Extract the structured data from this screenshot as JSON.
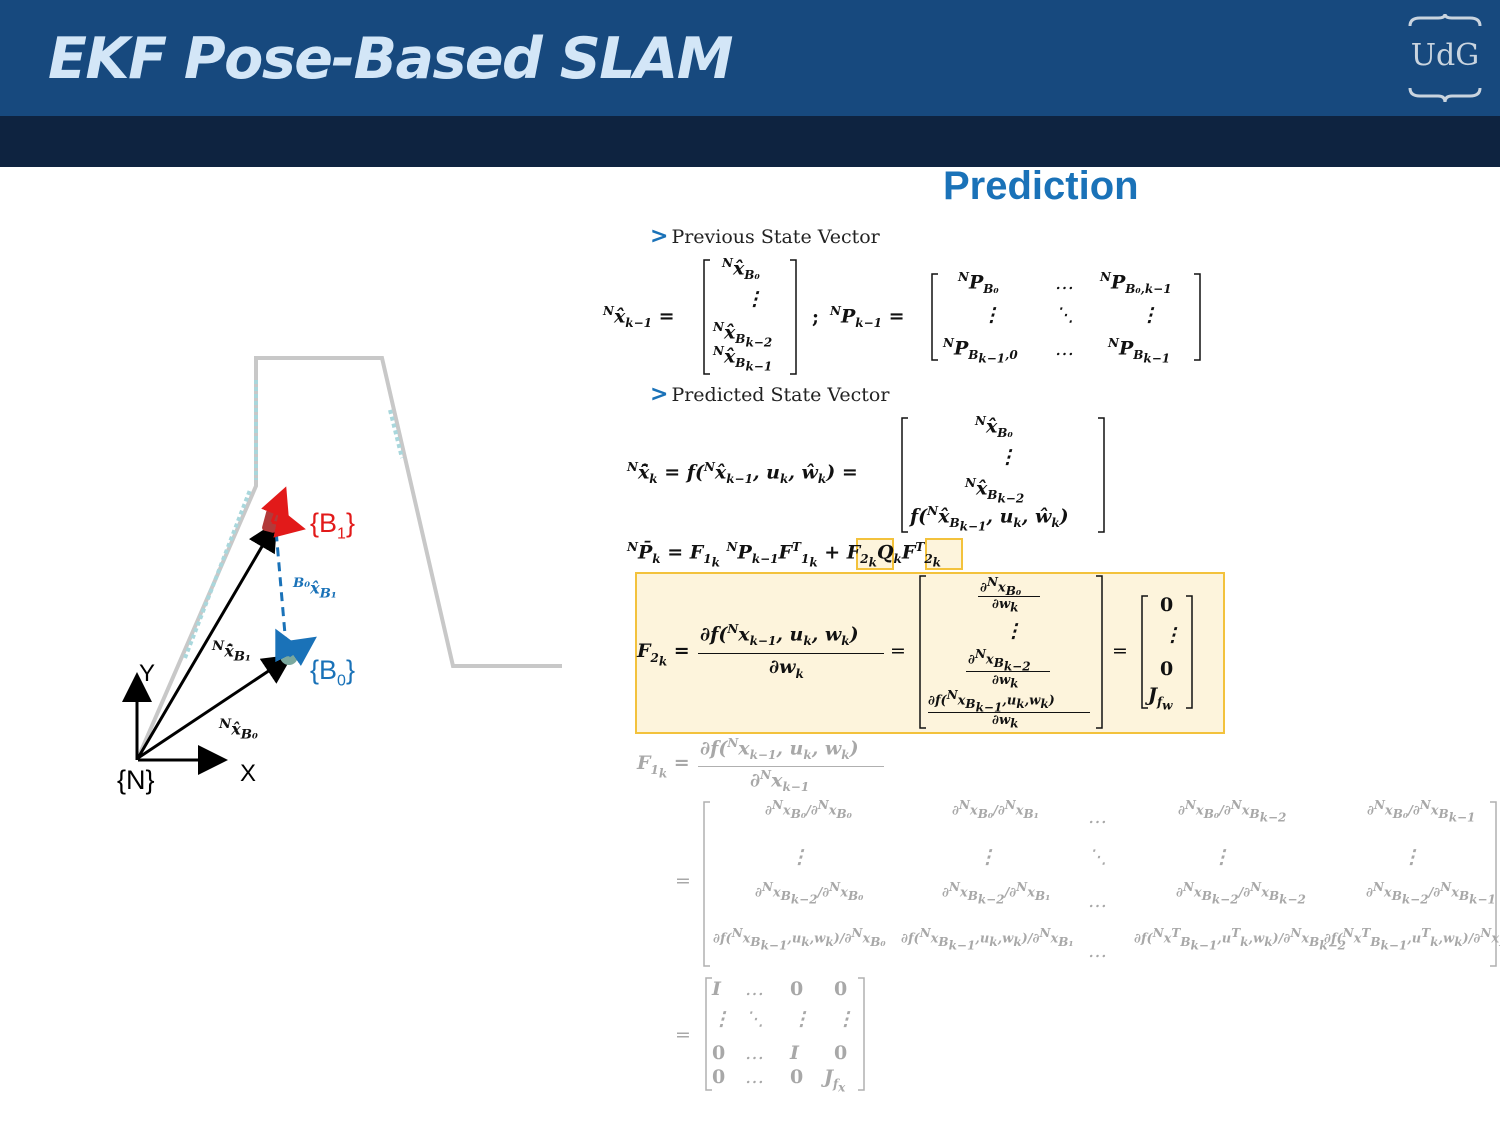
{
  "header": {
    "title": "EKF Pose-Based SLAM",
    "logo_text": "UdG"
  },
  "section": {
    "title": "Prediction"
  },
  "bullets": {
    "previous": "Previous State Vector",
    "predicted": "Predicted State Vector"
  },
  "figure": {
    "label_b1": "{B",
    "label_b1_sub": "1",
    "label_b1_end": "}",
    "label_b0": "{B",
    "label_b0_sub": "0",
    "label_b0_end": "}",
    "label_n": "{N}",
    "label_x": "X",
    "label_y": "Y",
    "colors": {
      "b1": "#e21a1a",
      "b0": "#1a72b8",
      "wall": "#c8c8c8",
      "trajectory": "#a9d7dc"
    }
  }
}
